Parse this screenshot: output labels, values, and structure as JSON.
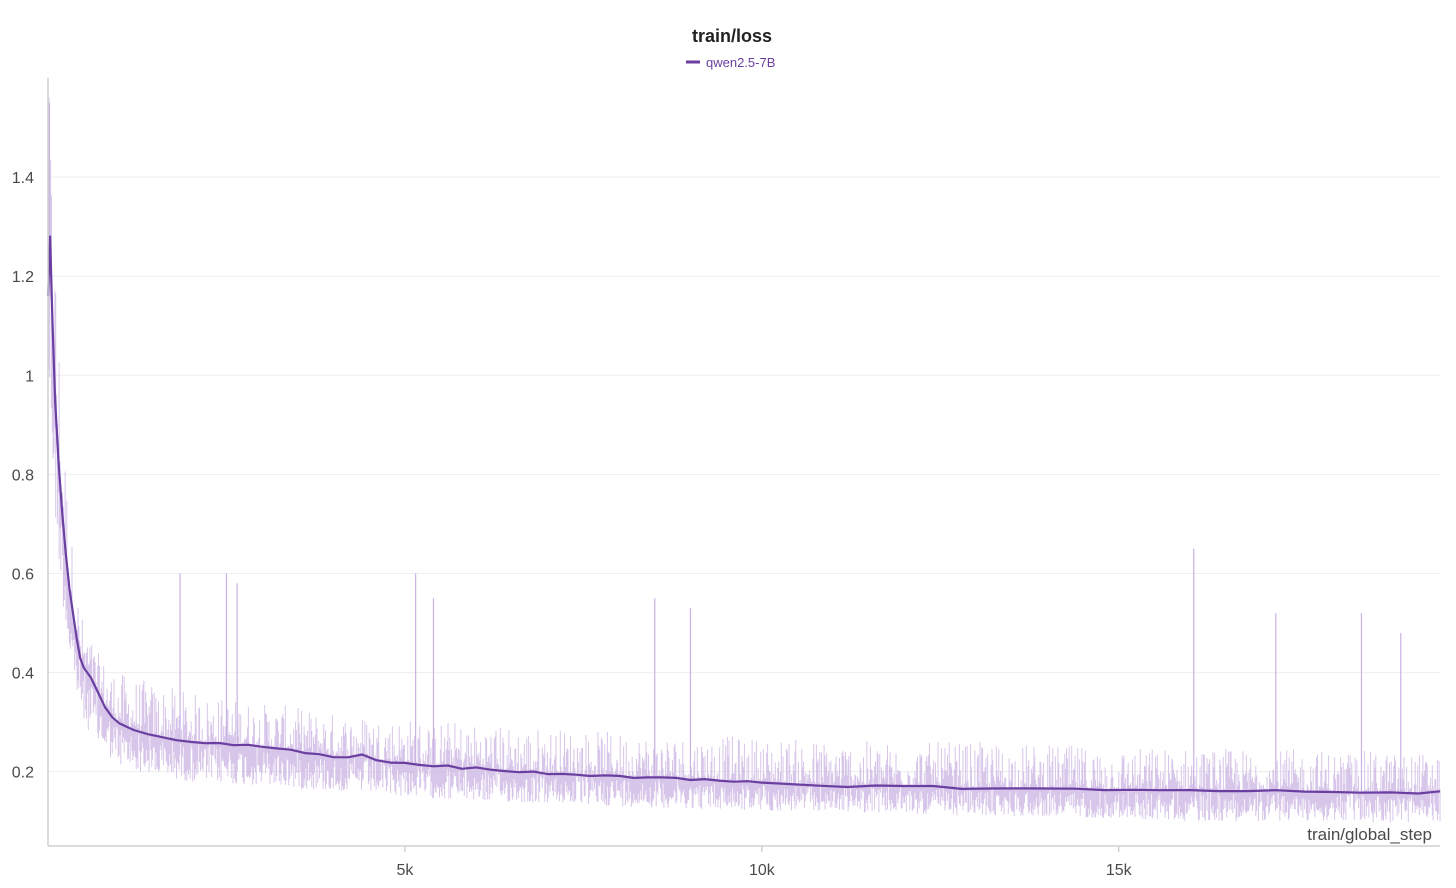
{
  "chart_data": {
    "type": "line",
    "title": "train/loss",
    "xlabel": "train/global_step",
    "ylabel": "",
    "xlim": [
      0,
      19500
    ],
    "ylim": [
      0.05,
      1.6
    ],
    "x_ticks": [
      5000,
      10000,
      15000
    ],
    "x_tick_labels": [
      "5k",
      "10k",
      "15k"
    ],
    "y_ticks": [
      0.2,
      0.4,
      0.6,
      0.8,
      1.0,
      1.2,
      1.4
    ],
    "y_tick_labels": [
      "0.2",
      "0.4",
      "0.6",
      "0.8",
      "1",
      "1.2",
      "1.4"
    ],
    "grid": true,
    "legend_position": "top-center",
    "series": [
      {
        "name": "qwen2.5-7B",
        "color": "#6a3fa0",
        "raw_color": "#c9b3e3",
        "smoothed": {
          "x": [
            0,
            30,
            60,
            100,
            150,
            200,
            250,
            300,
            350,
            400,
            450,
            500,
            600,
            700,
            800,
            900,
            1000,
            1200,
            1400,
            1600,
            1800,
            2000,
            2200,
            2400,
            2600,
            2800,
            3000,
            3200,
            3400,
            3600,
            3800,
            4000,
            4200,
            4400,
            4600,
            4800,
            5000,
            5200,
            5400,
            5600,
            5800,
            6000,
            6200,
            6400,
            6600,
            6800,
            7000,
            7200,
            7400,
            7600,
            7800,
            8000,
            8200,
            8400,
            8600,
            8800,
            9000,
            9200,
            9400,
            9600,
            9800,
            10000,
            10400,
            10800,
            11200,
            11600,
            12000,
            12400,
            12800,
            13200,
            13600,
            14000,
            14400,
            14800,
            15200,
            15600,
            16000,
            16400,
            16800,
            17200,
            17600,
            18000,
            18400,
            18800,
            19200,
            19500
          ],
          "y": [
            1.16,
            1.28,
            1.12,
            0.95,
            0.82,
            0.72,
            0.64,
            0.57,
            0.52,
            0.47,
            0.43,
            0.41,
            0.39,
            0.36,
            0.33,
            0.31,
            0.3,
            0.285,
            0.275,
            0.27,
            0.265,
            0.26,
            0.258,
            0.256,
            0.255,
            0.252,
            0.248,
            0.245,
            0.243,
            0.24,
            0.236,
            0.232,
            0.228,
            0.232,
            0.225,
            0.22,
            0.216,
            0.214,
            0.212,
            0.21,
            0.208,
            0.206,
            0.204,
            0.202,
            0.2,
            0.198,
            0.197,
            0.196,
            0.195,
            0.194,
            0.193,
            0.192,
            0.19,
            0.188,
            0.186,
            0.185,
            0.183,
            0.182,
            0.181,
            0.18,
            0.178,
            0.176,
            0.175,
            0.173,
            0.172,
            0.171,
            0.17,
            0.169,
            0.168,
            0.167,
            0.166,
            0.165,
            0.164,
            0.163,
            0.163,
            0.162,
            0.165,
            0.163,
            0.162,
            0.16,
            0.159,
            0.158,
            0.16,
            0.158,
            0.157,
            0.163
          ]
        },
        "raw_band": {
          "x": [
            0,
            50,
            100,
            200,
            300,
            400,
            500,
            700,
            1000,
            1500,
            2000,
            3000,
            4000,
            5000,
            6000,
            7000,
            8000,
            9000,
            10000,
            11000,
            12000,
            13000,
            14000,
            15000,
            16000,
            17000,
            18000,
            19000,
            19500
          ],
          "low": [
            0.95,
            0.85,
            0.7,
            0.55,
            0.42,
            0.35,
            0.3,
            0.25,
            0.21,
            0.19,
            0.18,
            0.17,
            0.16,
            0.15,
            0.14,
            0.135,
            0.13,
            0.125,
            0.12,
            0.12,
            0.115,
            0.11,
            0.11,
            0.105,
            0.1,
            0.1,
            0.1,
            0.095,
            0.1
          ],
          "high": [
            1.6,
            1.45,
            1.3,
            0.95,
            0.72,
            0.58,
            0.5,
            0.44,
            0.4,
            0.38,
            0.36,
            0.34,
            0.32,
            0.31,
            0.3,
            0.29,
            0.28,
            0.275,
            0.27,
            0.265,
            0.26,
            0.26,
            0.255,
            0.25,
            0.25,
            0.245,
            0.245,
            0.24,
            0.24
          ]
        },
        "spikes": [
          {
            "x": 20,
            "y": 1.55
          },
          {
            "x": 1850,
            "y": 0.6
          },
          {
            "x": 2500,
            "y": 0.6
          },
          {
            "x": 2650,
            "y": 0.58
          },
          {
            "x": 5150,
            "y": 0.6
          },
          {
            "x": 5400,
            "y": 0.55
          },
          {
            "x": 8500,
            "y": 0.55
          },
          {
            "x": 9000,
            "y": 0.53
          },
          {
            "x": 16050,
            "y": 0.65
          },
          {
            "x": 17200,
            "y": 0.52
          },
          {
            "x": 18400,
            "y": 0.52
          },
          {
            "x": 18950,
            "y": 0.48
          }
        ]
      }
    ]
  }
}
